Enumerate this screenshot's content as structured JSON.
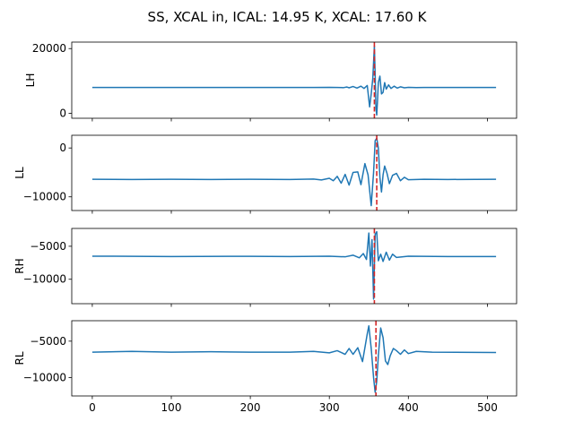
{
  "figure": {
    "title": "SS, XCAL in, ICAL: 14.95 K, XCAL: 17.60 K"
  },
  "colors": {
    "series": "#1f77b4",
    "marker": "#d62728"
  },
  "chart_data": [
    {
      "type": "line",
      "ylabel": "LH",
      "xlim": [
        -26,
        537
      ],
      "ylim": [
        -1500,
        22000
      ],
      "xticks": [
        0,
        100,
        200,
        300,
        400,
        500
      ],
      "yticks": [
        0,
        20000
      ],
      "ytick_labels": [
        "0",
        "20000"
      ],
      "show_xtick_labels": false,
      "marker_x": 357,
      "series": [
        {
          "points": [
            [
              0,
              8000
            ],
            [
              100,
              8000
            ],
            [
              200,
              8000
            ],
            [
              280,
              8000
            ],
            [
              300,
              8050
            ],
            [
              310,
              8000
            ],
            [
              318,
              7950
            ],
            [
              322,
              8150
            ],
            [
              325,
              7900
            ],
            [
              330,
              8300
            ],
            [
              335,
              7800
            ],
            [
              340,
              8400
            ],
            [
              344,
              7700
            ],
            [
              348,
              8600
            ],
            [
              351,
              2000
            ],
            [
              353,
              6000
            ],
            [
              355,
              10800
            ],
            [
              357,
              20800
            ],
            [
              358,
              12000
            ],
            [
              359,
              1500
            ],
            [
              360,
              -500
            ],
            [
              361,
              4000
            ],
            [
              362,
              9500
            ],
            [
              364,
              11500
            ],
            [
              366,
              6000
            ],
            [
              368,
              6500
            ],
            [
              370,
              9500
            ],
            [
              372,
              7500
            ],
            [
              375,
              8800
            ],
            [
              378,
              7700
            ],
            [
              382,
              8400
            ],
            [
              386,
              7800
            ],
            [
              390,
              8200
            ],
            [
              395,
              7900
            ],
            [
              400,
              8050
            ],
            [
              410,
              7980
            ],
            [
              420,
              8020
            ],
            [
              450,
              8000
            ],
            [
              511,
              8000
            ]
          ]
        }
      ]
    },
    {
      "type": "line",
      "ylabel": "LL",
      "xlim": [
        -26,
        537
      ],
      "ylim": [
        -12800,
        2600
      ],
      "xticks": [
        0,
        100,
        200,
        300,
        400,
        500
      ],
      "yticks": [
        0,
        -10000
      ],
      "ytick_labels": [
        "0",
        "−10000"
      ],
      "show_xtick_labels": false,
      "marker_x": 360,
      "series": [
        {
          "points": [
            [
              0,
              -6400
            ],
            [
              50,
              -6450
            ],
            [
              100,
              -6400
            ],
            [
              150,
              -6450
            ],
            [
              200,
              -6400
            ],
            [
              250,
              -6450
            ],
            [
              280,
              -6350
            ],
            [
              290,
              -6550
            ],
            [
              300,
              -6200
            ],
            [
              305,
              -6700
            ],
            [
              310,
              -5800
            ],
            [
              315,
              -7200
            ],
            [
              320,
              -5400
            ],
            [
              325,
              -7600
            ],
            [
              330,
              -5000
            ],
            [
              336,
              -4900
            ],
            [
              340,
              -7500
            ],
            [
              345,
              -3200
            ],
            [
              349,
              -5500
            ],
            [
              353,
              -11800
            ],
            [
              356,
              -5000
            ],
            [
              358,
              1500
            ],
            [
              360,
              2000
            ],
            [
              362,
              0
            ],
            [
              364,
              -6000
            ],
            [
              366,
              -9000
            ],
            [
              368,
              -5500
            ],
            [
              370,
              -3700
            ],
            [
              373,
              -5200
            ],
            [
              376,
              -7300
            ],
            [
              380,
              -5600
            ],
            [
              385,
              -5200
            ],
            [
              390,
              -6700
            ],
            [
              395,
              -6000
            ],
            [
              400,
              -6500
            ],
            [
              420,
              -6400
            ],
            [
              450,
              -6450
            ],
            [
              511,
              -6400
            ]
          ]
        }
      ]
    },
    {
      "type": "line",
      "ylabel": "RH",
      "xlim": [
        -26,
        537
      ],
      "ylim": [
        -13700,
        -2300
      ],
      "xticks": [
        0,
        100,
        200,
        300,
        400,
        500
      ],
      "yticks": [
        -5000,
        -10000
      ],
      "ytick_labels": [
        "−5000",
        "−10000"
      ],
      "show_xtick_labels": false,
      "marker_x": 357,
      "series": [
        {
          "points": [
            [
              0,
              -6500
            ],
            [
              100,
              -6550
            ],
            [
              200,
              -6520
            ],
            [
              250,
              -6550
            ],
            [
              300,
              -6500
            ],
            [
              320,
              -6600
            ],
            [
              330,
              -6350
            ],
            [
              338,
              -6750
            ],
            [
              343,
              -6100
            ],
            [
              347,
              -7000
            ],
            [
              350,
              -3000
            ],
            [
              352,
              -8000
            ],
            [
              354,
              -4000
            ],
            [
              356,
              -13000
            ],
            [
              357,
              -8000
            ],
            [
              358,
              -3200
            ],
            [
              360,
              -2800
            ],
            [
              362,
              -7200
            ],
            [
              365,
              -6200
            ],
            [
              368,
              -7300
            ],
            [
              372,
              -5900
            ],
            [
              376,
              -7100
            ],
            [
              380,
              -6200
            ],
            [
              385,
              -6700
            ],
            [
              400,
              -6500
            ],
            [
              450,
              -6550
            ],
            [
              511,
              -6550
            ]
          ]
        }
      ]
    },
    {
      "type": "line",
      "ylabel": "RL",
      "xlim": [
        -26,
        537
      ],
      "ylim": [
        -12500,
        -2200
      ],
      "xticks": [
        0,
        100,
        200,
        300,
        400,
        500
      ],
      "yticks": [
        -5000,
        -10000
      ],
      "xtick_labels": [
        "0",
        "100",
        "200",
        "300",
        "400",
        "500"
      ],
      "ytick_labels": [
        "−5000",
        "−10000"
      ],
      "show_xtick_labels": true,
      "marker_x": 359,
      "series": [
        {
          "points": [
            [
              0,
              -6500
            ],
            [
              50,
              -6400
            ],
            [
              100,
              -6500
            ],
            [
              150,
              -6450
            ],
            [
              200,
              -6500
            ],
            [
              250,
              -6500
            ],
            [
              280,
              -6400
            ],
            [
              300,
              -6600
            ],
            [
              310,
              -6300
            ],
            [
              320,
              -6800
            ],
            [
              325,
              -6000
            ],
            [
              330,
              -6800
            ],
            [
              336,
              -5900
            ],
            [
              342,
              -7800
            ],
            [
              348,
              -4000
            ],
            [
              350,
              -2900
            ],
            [
              353,
              -6000
            ],
            [
              356,
              -10000
            ],
            [
              358,
              -12000
            ],
            [
              360,
              -10500
            ],
            [
              362,
              -7000
            ],
            [
              365,
              -3200
            ],
            [
              368,
              -4500
            ],
            [
              371,
              -7700
            ],
            [
              374,
              -8200
            ],
            [
              377,
              -7000
            ],
            [
              381,
              -6000
            ],
            [
              385,
              -6300
            ],
            [
              390,
              -6800
            ],
            [
              395,
              -6200
            ],
            [
              400,
              -6700
            ],
            [
              410,
              -6400
            ],
            [
              430,
              -6500
            ],
            [
              511,
              -6550
            ]
          ]
        }
      ]
    }
  ]
}
